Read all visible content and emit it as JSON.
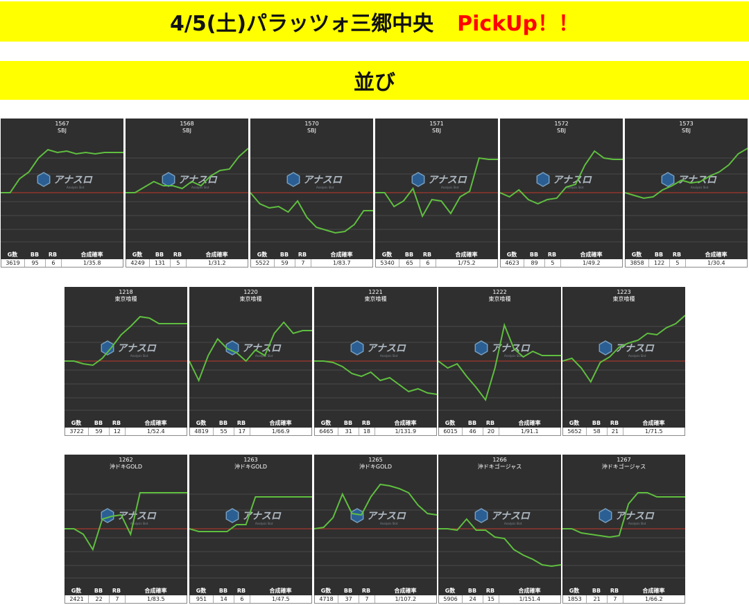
{
  "header": {
    "title": "4/5(土)パラッツォ三郷中央",
    "pickup": "PickUp！！"
  },
  "section": {
    "title": "並び"
  },
  "table_headers": [
    "G数",
    "BB",
    "RB",
    "合成確率"
  ],
  "logo": {
    "name": "アナスロ",
    "sub": "Analysis Slot",
    "icon": "hexagon-logo-icon"
  },
  "colors": {
    "banner": "#ffff00",
    "pickup": "#ff0000",
    "panel_bg": "#2f2f2f",
    "line": "#5fbf3f",
    "zero_line": "#c0392b"
  },
  "rows": [
    {
      "panels": [
        {
          "number": "1567",
          "model": "SBJ",
          "stats": [
            "3619",
            "95",
            "6",
            "1/35.8"
          ],
          "trend": [
            0,
            0,
            20,
            30,
            50,
            62,
            58,
            60,
            56,
            58,
            56,
            58,
            58,
            58
          ]
        },
        {
          "number": "1568",
          "model": "SBJ",
          "stats": [
            "4249",
            "131",
            "5",
            "1/31.2"
          ],
          "trend": [
            0,
            0,
            8,
            16,
            10,
            10,
            6,
            16,
            10,
            24,
            32,
            34,
            52,
            64
          ]
        },
        {
          "number": "1570",
          "model": "SBJ",
          "stats": [
            "5522",
            "59",
            "7",
            "1/83.7"
          ],
          "trend": [
            0,
            -16,
            -22,
            -20,
            -28,
            -12,
            -36,
            -50,
            -54,
            -58,
            -56,
            -46,
            -26,
            -26
          ]
        },
        {
          "number": "1571",
          "model": "SBJ",
          "stats": [
            "5340",
            "65",
            "6",
            "1/75.2"
          ],
          "trend": [
            0,
            0,
            -20,
            -12,
            6,
            -34,
            -10,
            -12,
            -30,
            -6,
            2,
            50,
            48,
            48
          ]
        },
        {
          "number": "1572",
          "model": "SBJ",
          "stats": [
            "4623",
            "89",
            "5",
            "1/49.2"
          ],
          "trend": [
            0,
            -6,
            4,
            -10,
            -16,
            -10,
            -8,
            8,
            12,
            40,
            60,
            50,
            48,
            48
          ]
        },
        {
          "number": "1573",
          "model": "SBJ",
          "stats": [
            "3858",
            "122",
            "5",
            "1/30.4"
          ],
          "trend": [
            0,
            -4,
            -8,
            -6,
            4,
            10,
            18,
            14,
            16,
            24,
            30,
            40,
            56,
            64
          ]
        }
      ]
    },
    {
      "panels": [
        {
          "number": "1218",
          "model": "東京喰種",
          "stats": [
            "3722",
            "59",
            "12",
            "1/52.4"
          ],
          "trend": [
            0,
            0,
            -4,
            -6,
            4,
            20,
            38,
            50,
            64,
            62,
            54,
            54,
            54,
            54
          ]
        },
        {
          "number": "1220",
          "model": "東京喰種",
          "stats": [
            "4819",
            "55",
            "17",
            "1/66.9"
          ],
          "trend": [
            0,
            -28,
            8,
            32,
            18,
            12,
            0,
            16,
            8,
            40,
            56,
            40,
            44,
            44
          ]
        },
        {
          "number": "1221",
          "model": "東京喰種",
          "stats": [
            "6465",
            "31",
            "18",
            "1/131.9"
          ],
          "trend": [
            0,
            0,
            -2,
            -8,
            -18,
            -22,
            -16,
            -28,
            -24,
            -34,
            -44,
            -40,
            -46,
            -48
          ]
        },
        {
          "number": "1222",
          "model": "東京喰種",
          "stats": [
            "6015",
            "46",
            "20",
            "1/91.1"
          ],
          "trend": [
            0,
            -10,
            -4,
            -22,
            -38,
            -56,
            -10,
            52,
            18,
            6,
            14,
            8,
            8,
            8
          ]
        },
        {
          "number": "1223",
          "model": "東京喰種",
          "stats": [
            "5652",
            "58",
            "21",
            "1/71.5"
          ],
          "trend": [
            0,
            4,
            -10,
            -30,
            -2,
            6,
            20,
            26,
            30,
            40,
            38,
            48,
            54,
            66
          ]
        }
      ]
    },
    {
      "panels": [
        {
          "number": "1262",
          "model": "沖ドキGOLD",
          "stats": [
            "2421",
            "22",
            "7",
            "1/83.5"
          ],
          "trend": [
            0,
            0,
            -8,
            -30,
            14,
            18,
            20,
            -8,
            52,
            52,
            52,
            52,
            52,
            52
          ]
        },
        {
          "number": "1263",
          "model": "沖ドキGOLD",
          "stats": [
            "951",
            "14",
            "6",
            "1/47.5"
          ],
          "trend": [
            0,
            -4,
            -4,
            -4,
            -4,
            6,
            6,
            46,
            46,
            46,
            46,
            46,
            46,
            46
          ]
        },
        {
          "number": "1265",
          "model": "沖ドキGOLD",
          "stats": [
            "4718",
            "37",
            "7",
            "1/107.2"
          ],
          "trend": [
            0,
            2,
            16,
            50,
            22,
            20,
            46,
            64,
            62,
            58,
            52,
            34,
            22,
            20
          ]
        },
        {
          "number": "1266",
          "model": "沖ドキゴージャス",
          "stats": [
            "5906",
            "24",
            "15",
            "1/151.4"
          ],
          "trend": [
            0,
            0,
            -2,
            14,
            -2,
            -2,
            -12,
            -14,
            -30,
            -38,
            -44,
            -52,
            -54,
            -52
          ]
        },
        {
          "number": "1267",
          "model": "沖ドキゴージャス",
          "stats": [
            "1853",
            "21",
            "7",
            "1/66.2"
          ],
          "trend": [
            0,
            0,
            -6,
            -8,
            -10,
            -12,
            -10,
            36,
            52,
            52,
            46,
            46,
            46,
            46
          ]
        }
      ]
    }
  ]
}
